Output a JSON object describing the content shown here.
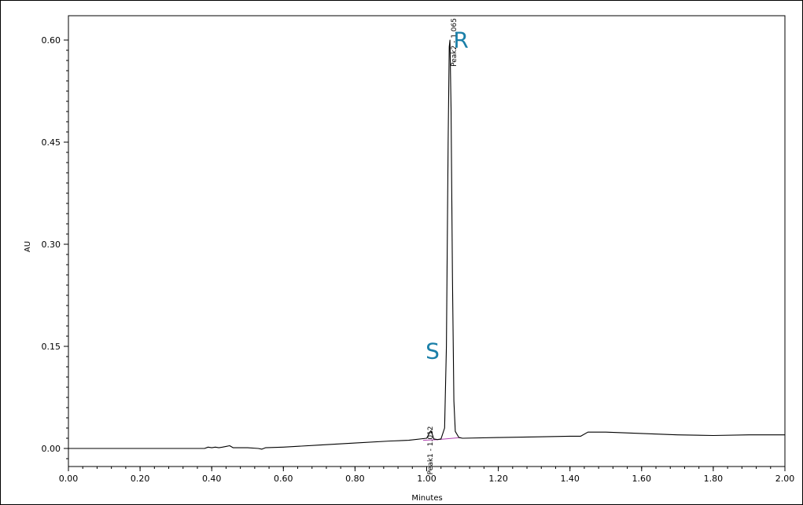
{
  "chart_data": {
    "type": "line",
    "xlabel": "Minutes",
    "ylabel": "AU",
    "xlim": [
      0.0,
      2.0
    ],
    "ylim": [
      -0.025,
      0.6
    ],
    "x_ticks": [
      "0.00",
      "0.20",
      "0.40",
      "0.60",
      "0.80",
      "1.00",
      "1.20",
      "1.40",
      "1.60",
      "1.80",
      "2.00"
    ],
    "y_ticks": [
      "0.00",
      "0.15",
      "0.30",
      "0.45",
      "0.60"
    ],
    "x_tick_values": [
      0.0,
      0.2,
      0.4,
      0.6,
      0.8,
      1.0,
      1.2,
      1.4,
      1.6,
      1.8,
      2.0
    ],
    "y_tick_values": [
      0.0,
      0.15,
      0.3,
      0.45,
      0.6
    ],
    "grid": false,
    "series": [
      {
        "x": [
          0.0,
          0.1,
          0.2,
          0.3,
          0.38,
          0.39,
          0.4,
          0.41,
          0.42,
          0.43,
          0.44,
          0.45,
          0.46,
          0.5,
          0.53,
          0.54,
          0.55,
          0.6,
          0.7,
          0.8,
          0.9,
          0.95,
          1.0,
          1.005,
          1.01,
          1.012,
          1.015,
          1.02,
          1.03,
          1.04,
          1.05,
          1.055,
          1.06,
          1.063,
          1.065,
          1.068,
          1.072,
          1.076,
          1.08,
          1.09,
          1.1,
          1.2,
          1.3,
          1.4,
          1.43,
          1.45,
          1.5,
          1.6,
          1.7,
          1.8,
          1.9,
          2.0
        ],
        "y": [
          0.0,
          0.0,
          0.0,
          0.0,
          0.0,
          0.002,
          0.001,
          0.002,
          0.001,
          0.002,
          0.003,
          0.004,
          0.001,
          0.001,
          0.0,
          -0.001,
          0.001,
          0.002,
          0.005,
          0.008,
          0.011,
          0.012,
          0.015,
          0.02,
          0.025,
          0.026,
          0.022,
          0.014,
          0.013,
          0.014,
          0.03,
          0.15,
          0.45,
          0.59,
          0.6,
          0.5,
          0.25,
          0.07,
          0.025,
          0.016,
          0.015,
          0.016,
          0.017,
          0.018,
          0.018,
          0.024,
          0.024,
          0.022,
          0.02,
          0.019,
          0.02,
          0.02
        ]
      }
    ],
    "baselines": [
      {
        "x": [
          0.99,
          1.03
        ],
        "y": [
          0.012,
          0.013
        ]
      },
      {
        "x": [
          1.03,
          1.095
        ],
        "y": [
          0.013,
          0.016
        ]
      }
    ],
    "annotations": [
      {
        "text": "Peak1 - 1.012",
        "x": 1.012,
        "y": 0.026,
        "letter": "S",
        "letter_y": 0.145
      },
      {
        "text": "Peak2 - 1.065",
        "x": 1.065,
        "y": 0.6,
        "letter": "R",
        "letter_y": 0.59
      }
    ],
    "colors": {
      "trace": "#000000",
      "baseline": "#b040b0",
      "letters": "#1a7fa8",
      "axis": "#000000"
    }
  }
}
